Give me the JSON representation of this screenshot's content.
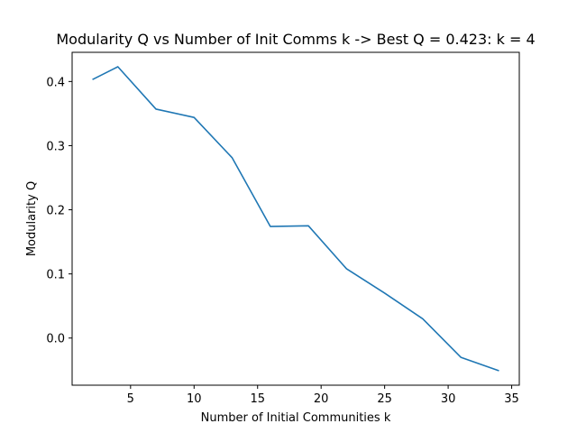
{
  "chart_data": {
    "type": "line",
    "title": "Modularity Q vs Number of Init Comms k -> Best Q = 0.423: k = 4",
    "xlabel": "Number of Initial Communities k",
    "ylabel": "Modularity Q",
    "xlim": [
      0.4,
      35.6
    ],
    "ylim": [
      -0.0735,
      0.4455
    ],
    "xticks": [
      5,
      10,
      15,
      20,
      25,
      30,
      35
    ],
    "xtick_labels": [
      "5",
      "10",
      "15",
      "20",
      "25",
      "30",
      "35"
    ],
    "yticks": [
      0.0,
      0.1,
      0.2,
      0.3,
      0.4
    ],
    "ytick_labels": [
      "0.0",
      "0.1",
      "0.2",
      "0.3",
      "0.4"
    ],
    "grid": false,
    "line_color": "#1f77b4",
    "series": [
      {
        "x": [
          2,
          4,
          7,
          10,
          13,
          16,
          19,
          22,
          25,
          28,
          31,
          34
        ],
        "y": [
          0.403,
          0.423,
          0.357,
          0.344,
          0.281,
          0.174,
          0.175,
          0.108,
          0.07,
          0.03,
          -0.03,
          -0.051
        ]
      }
    ]
  }
}
